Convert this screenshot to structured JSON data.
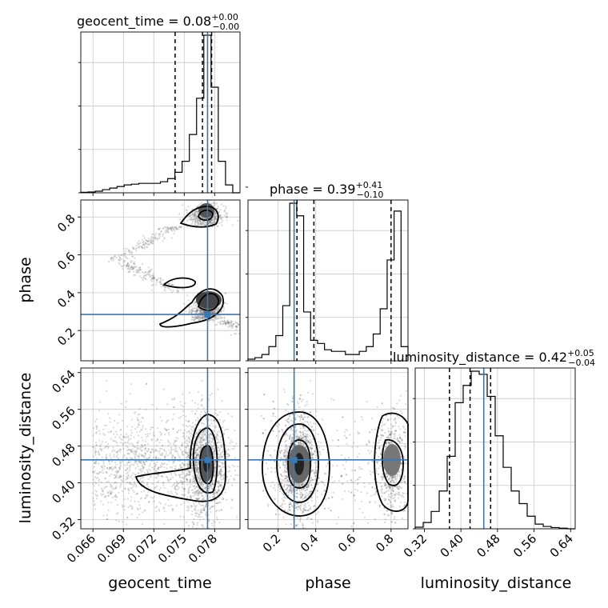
{
  "chart_data": {
    "type": "corner",
    "truth_color": "#3b77b0",
    "parameters": [
      {
        "name": "geocent_time",
        "title_main": "geocent_time = 0.08",
        "title_sup": "+0.00",
        "title_sub": "−0.00",
        "range": [
          0.0648,
          0.0805
        ],
        "ticks": [
          "0.066",
          "0.069",
          "0.072",
          "0.075",
          "0.078"
        ],
        "tick_values": [
          0.066,
          0.069,
          0.072,
          0.075,
          0.078
        ],
        "truth": 0.0773,
        "quantiles": [
          0.0741,
          0.0768,
          0.0777
        ]
      },
      {
        "name": "phase",
        "title_main": "phase = 0.39",
        "title_sup": "+0.41",
        "title_sub": "−0.10",
        "range": [
          0.04,
          0.89
        ],
        "ticks": [
          "0.2",
          "0.4",
          "0.6",
          "0.8"
        ],
        "tick_values": [
          0.2,
          0.4,
          0.6,
          0.8
        ],
        "truth": 0.285,
        "quantiles": [
          0.3,
          0.39,
          0.8
        ]
      },
      {
        "name": "luminosity_distance",
        "title_main": "luminosity_distance = 0.42",
        "title_sup": "+0.05",
        "title_sub": "−0.04",
        "range": [
          0.3,
          0.65
        ],
        "ticks": [
          "0.32",
          "0.40",
          "0.48",
          "0.56",
          "0.64"
        ],
        "tick_values": [
          0.32,
          0.4,
          0.48,
          0.56,
          0.64
        ],
        "truth": 0.45,
        "quantiles": [
          0.375,
          0.42,
          0.465
        ]
      }
    ],
    "histograms": {
      "geocent_time": [
        0.3,
        0.5,
        1,
        2,
        3,
        4,
        5,
        5.5,
        6,
        6,
        6,
        7,
        9,
        13,
        20,
        37,
        60,
        100,
        67,
        20,
        5,
        0
      ],
      "phase": [
        1,
        2,
        4,
        9,
        16,
        35,
        100,
        92,
        31,
        13,
        11,
        7,
        6,
        6,
        4,
        4,
        6,
        9,
        17,
        33,
        64,
        95,
        9
      ],
      "luminosity_distance": [
        1,
        4,
        11,
        24,
        46,
        80,
        91,
        100,
        98,
        84,
        59,
        39,
        24,
        16,
        8,
        3,
        1.5,
        0.8,
        0.4,
        0
      ]
    }
  }
}
